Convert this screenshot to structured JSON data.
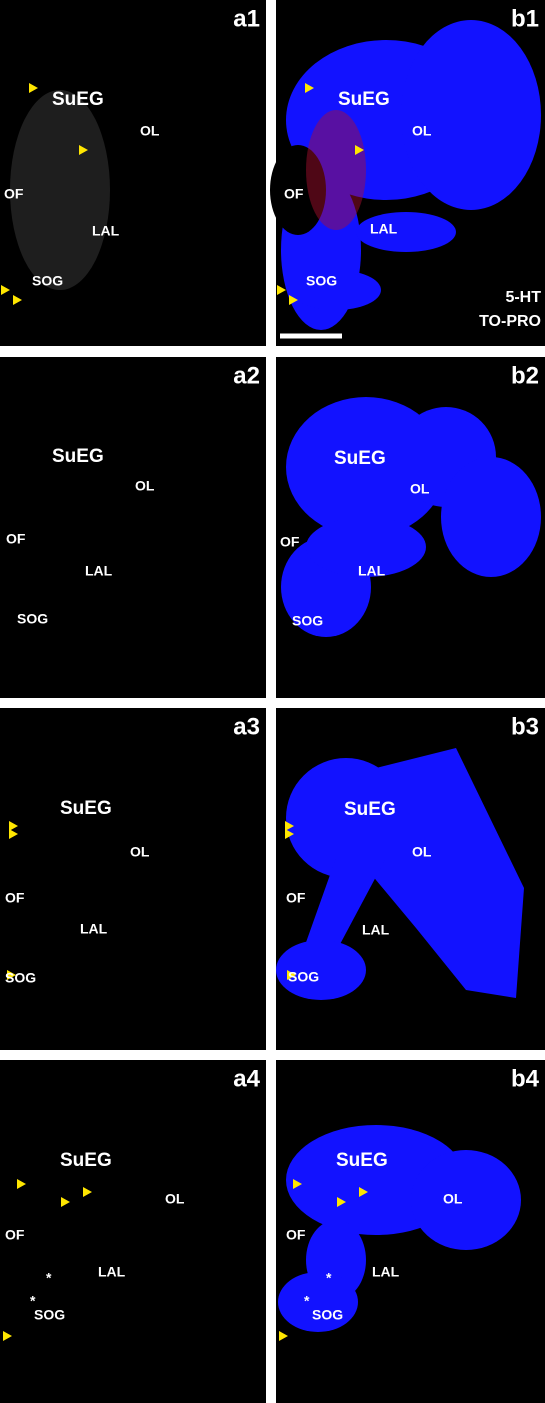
{
  "figure": {
    "panels": [
      {
        "label": "a1",
        "regions": [
          "SuEG",
          "OL",
          "OF",
          "LAL",
          "SOG"
        ]
      },
      {
        "label": "b1",
        "regions": [
          "SuEG",
          "OL",
          "OF",
          "LAL",
          "SOG"
        ]
      },
      {
        "label": "a2",
        "regions": [
          "SuEG",
          "OL",
          "OF",
          "LAL",
          "SOG"
        ]
      },
      {
        "label": "b2",
        "regions": [
          "SuEG",
          "OL",
          "OF",
          "LAL",
          "SOG"
        ]
      },
      {
        "label": "a3",
        "regions": [
          "SuEG",
          "OL",
          "OF",
          "LAL",
          "SOG"
        ]
      },
      {
        "label": "b3",
        "regions": [
          "SuEG",
          "OL",
          "OF",
          "LAL",
          "SOG"
        ]
      },
      {
        "label": "a4",
        "regions": [
          "SuEG",
          "OL",
          "OF",
          "LAL",
          "SOG",
          "*",
          "*"
        ]
      },
      {
        "label": "b4",
        "regions": [
          "SuEG",
          "OL",
          "OF",
          "LAL",
          "SOG",
          "*",
          "*"
        ]
      }
    ],
    "legend": [
      {
        "text": "5-HT",
        "color": "#e01010"
      },
      {
        "text": "TO-PRO",
        "color": "#1a1aff"
      }
    ]
  }
}
